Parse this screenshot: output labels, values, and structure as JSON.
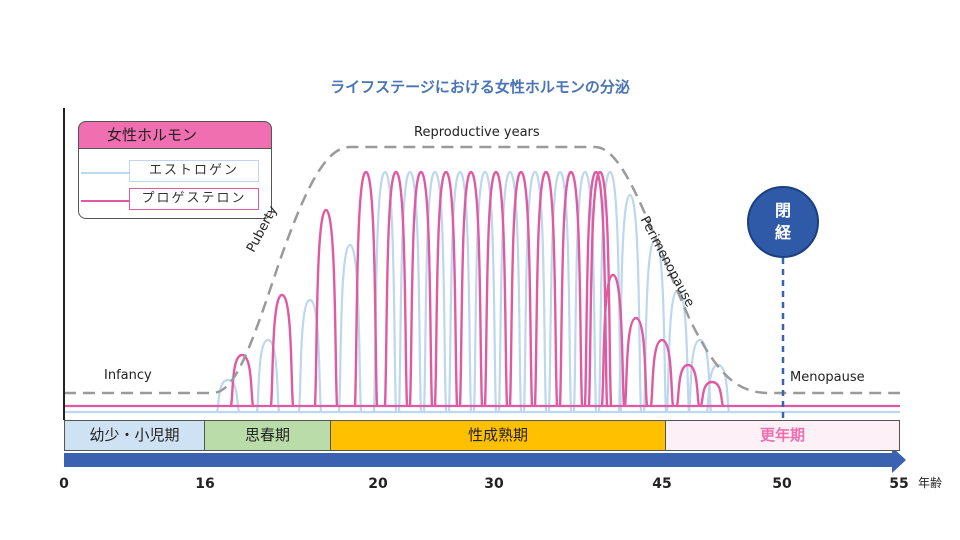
{
  "title": "ライフステージにおける女性ホルモンの分泌",
  "legend": {
    "title": "女性ホルモン",
    "items": [
      {
        "label": "エストロゲン",
        "color": "#bcd7ee"
      },
      {
        "label": "プロゲステロン",
        "color": "#e05aa2"
      }
    ]
  },
  "annotations": {
    "infancy": "Infancy",
    "puberty": "Puberty",
    "reproductive": "Reproductive years",
    "perimenopause": "Perimenopause",
    "menopause": "Menopause"
  },
  "menopause_marker": {
    "line1": "閉",
    "line2": "経",
    "age": 50
  },
  "stages": [
    {
      "label": "幼少・小児期",
      "start": 0,
      "end": 16,
      "color": "#cfe2f3",
      "text_color": "#222222"
    },
    {
      "label": "思春期",
      "start": 16,
      "end": 20,
      "color": "#b9dca8",
      "text_color": "#222222"
    },
    {
      "label": "性成熟期",
      "start": 20,
      "end": 45,
      "color": "#ffc000",
      "text_color": "#222222"
    },
    {
      "label": "更年期",
      "start": 45,
      "end": 55,
      "color": "#fdf0f6",
      "text_color": "#ef6fb0"
    }
  ],
  "axis": {
    "unit": "年齢",
    "ticks": [
      "0",
      "16",
      "20",
      "30",
      "45",
      "50",
      "55"
    ]
  },
  "colors": {
    "progesterone": "#e05aa2",
    "estrogen": "#bcd7ee",
    "envelope": "#9a9a9a",
    "arrow": "#3a62b0",
    "menopause_line": "#3a62b0"
  }
}
